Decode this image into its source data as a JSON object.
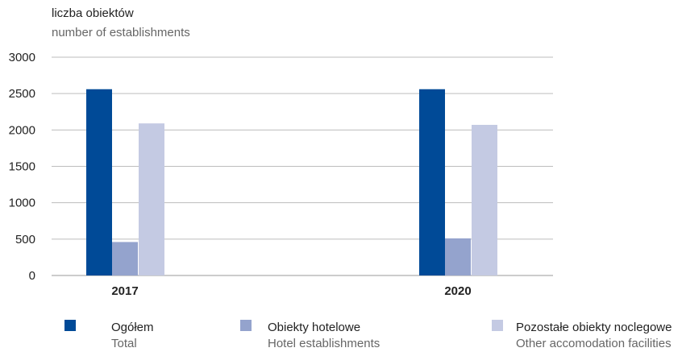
{
  "chart_data": {
    "type": "bar",
    "ylabel": "liczba obiektów",
    "ylabel_en": "number of establishments",
    "categories": [
      "2017",
      "2020"
    ],
    "ylim": [
      0,
      3000
    ],
    "yticks": [
      0,
      500,
      1000,
      1500,
      2000,
      2500,
      3000
    ],
    "grid": true,
    "legend_position": "bottom",
    "series": [
      {
        "name": "Ogółem",
        "name_en": "Total",
        "color": "#004a97",
        "values": [
          2560,
          2560
        ]
      },
      {
        "name": "Obiekty hotelowe",
        "name_en": "Hotel establishments",
        "color": "#94a3cd",
        "values": [
          460,
          510
        ]
      },
      {
        "name": "Pozostałe obiekty noclegowe",
        "name_en": "Other accomodation facilities",
        "color": "#c4cae3",
        "values": [
          2090,
          2070
        ]
      }
    ]
  }
}
